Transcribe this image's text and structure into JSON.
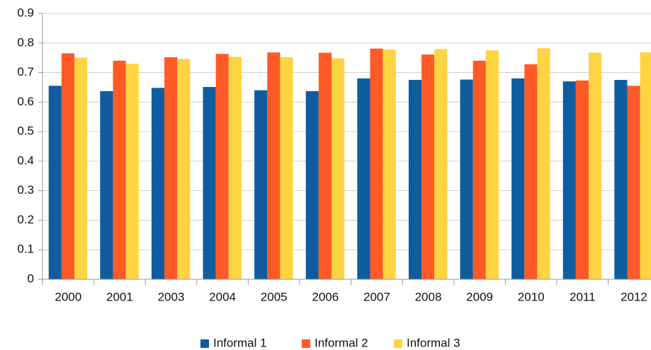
{
  "chart_data": {
    "type": "bar",
    "categories": [
      "2000",
      "2001",
      "2003",
      "2004",
      "2005",
      "2006",
      "2007",
      "2008",
      "2009",
      "2010",
      "2011",
      "2012"
    ],
    "series": [
      {
        "name": "Informal 1",
        "color": "#0f5d9e",
        "values": [
          0.655,
          0.637,
          0.648,
          0.651,
          0.64,
          0.637,
          0.68,
          0.675,
          0.676,
          0.68,
          0.67,
          0.675
        ]
      },
      {
        "name": "Informal 2",
        "color": "#ff5a26",
        "values": [
          0.765,
          0.74,
          0.752,
          0.763,
          0.768,
          0.767,
          0.781,
          0.761,
          0.74,
          0.728,
          0.673,
          0.655
        ]
      },
      {
        "name": "Informal 3",
        "color": "#ffd443",
        "values": [
          0.75,
          0.73,
          0.746,
          0.753,
          0.752,
          0.748,
          0.778,
          0.779,
          0.775,
          0.782,
          0.767,
          0.768
        ]
      }
    ],
    "ylim": [
      0,
      0.9
    ],
    "yticks": [
      0,
      0.1,
      0.2,
      0.3,
      0.4,
      0.5,
      0.6,
      0.7,
      0.8,
      0.9
    ],
    "grid": true,
    "legend": "bottom"
  }
}
